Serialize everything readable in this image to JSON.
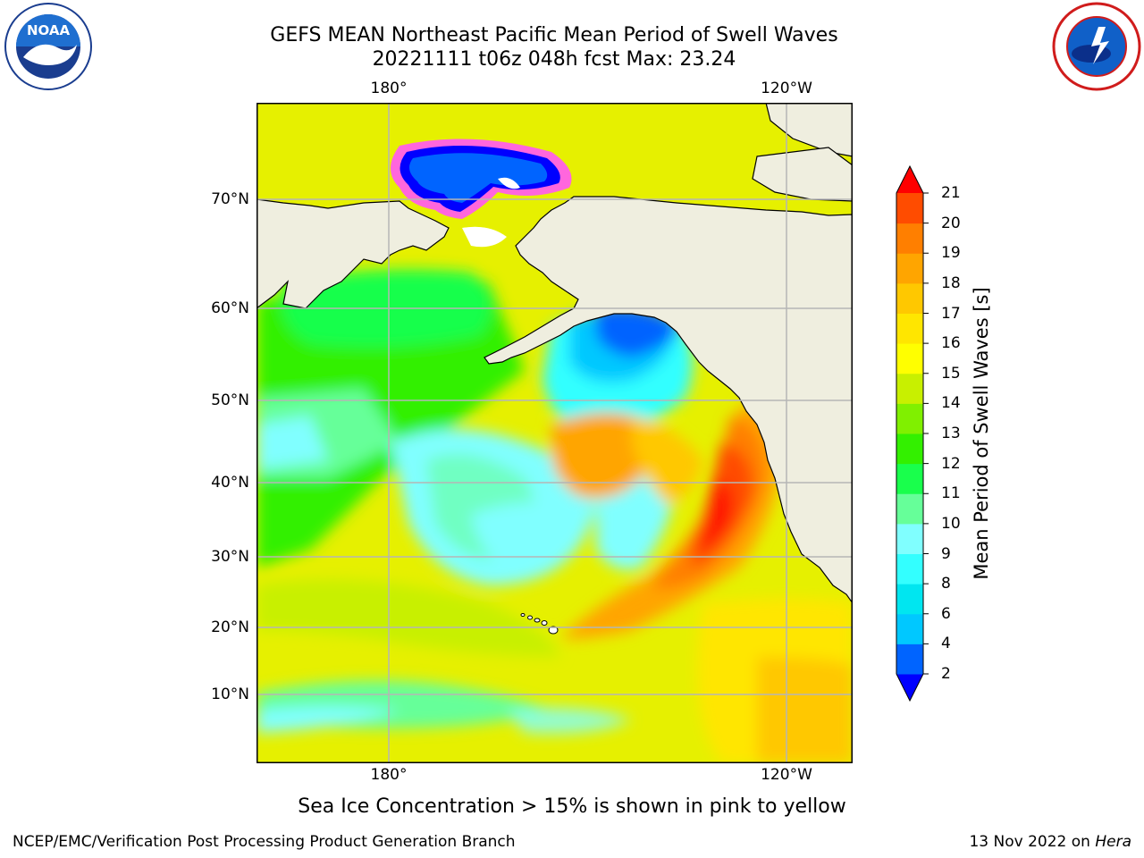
{
  "header": {
    "title_line1": "GEFS MEAN Northeast Pacific Mean Period of Swell Waves",
    "title_line2": "20221111 t06z 048h fcst   Max: 23.24"
  },
  "logos": {
    "left": "NOAA",
    "right": "NATIONAL WEATHER SERVICE"
  },
  "map": {
    "lon_ticks": [
      "180°",
      "120°W"
    ],
    "lat_ticks": [
      "70°N",
      "60°N",
      "50°N",
      "40°N",
      "30°N",
      "20°N",
      "10°N"
    ],
    "colors": {
      "land": "#efeedf",
      "ocean_base": "#e6f000",
      "grid": "#b5b5b5"
    }
  },
  "colorbar": {
    "label": "Mean Period of Swell Waves [s]",
    "ticks": [
      "2",
      "4",
      "6",
      "8",
      "9",
      "10",
      "11",
      "12",
      "13",
      "14",
      "15",
      "16",
      "17",
      "18",
      "19",
      "20",
      "21"
    ],
    "colors": [
      "#0064ff",
      "#00c8ff",
      "#00e6f0",
      "#33ffff",
      "#80ffff",
      "#66ff99",
      "#19ff4c",
      "#33f000",
      "#80f000",
      "#c8f000",
      "#ffff00",
      "#ffe600",
      "#ffc800",
      "#ffa500",
      "#ff7f00",
      "#ff4c00",
      "#ff1900"
    ],
    "under_color": "#0000ff",
    "over_color": "#ff0000"
  },
  "footer": {
    "note": "Sea Ice Concentration > 15% is shown in pink to yellow",
    "left": "NCEP/EMC/Verification Post Processing Product Generation Branch",
    "right_date": "13 Nov 2022 on ",
    "right_host": "Hera"
  }
}
